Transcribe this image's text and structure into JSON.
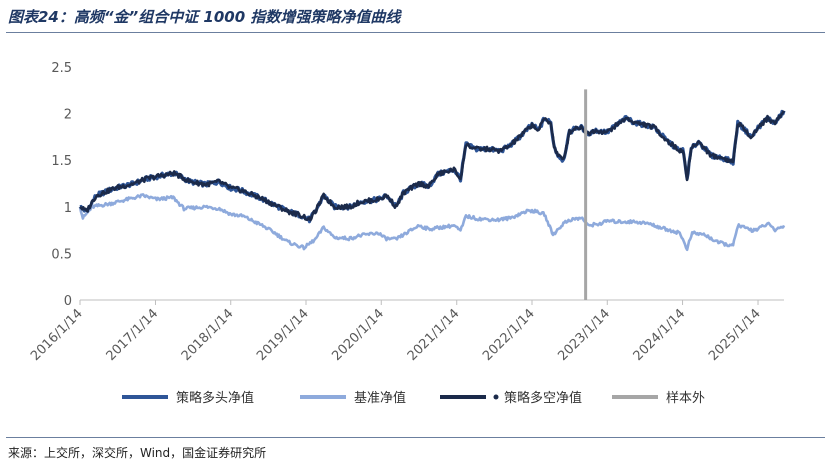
{
  "title": "图表24：高频“金”组合中证 1000 指数增强策略净值曲线",
  "source": "来源：上交所，深交所，Wind，国金证券研究所",
  "chart_data": {
    "type": "line",
    "x_tick_labels": [
      "2016/1/14",
      "2017/1/14",
      "2018/1/14",
      "2019/1/14",
      "2020/1/14",
      "2021/1/14",
      "2022/1/14",
      "2023/1/14",
      "2024/1/14",
      "2025/1/14"
    ],
    "y_tick_labels": [
      "0",
      "0.5",
      "1",
      "1.5",
      "2",
      "2.5"
    ],
    "ylim": [
      0,
      2.5
    ],
    "xlim": [
      "2016-01-14",
      "2025-05-20"
    ],
    "out_of_sample_start": "2022-10-01",
    "legend_position": "bottom",
    "series": [
      {
        "name": "策略多头净值",
        "color": "#2e5597",
        "points": [
          [
            "2016-01-14",
            1.0
          ],
          [
            "2016-02-15",
            0.95
          ],
          [
            "2016-04-01",
            1.12
          ],
          [
            "2016-07-01",
            1.2
          ],
          [
            "2016-10-01",
            1.25
          ],
          [
            "2016-12-01",
            1.3
          ],
          [
            "2017-02-01",
            1.33
          ],
          [
            "2017-04-15",
            1.36
          ],
          [
            "2017-07-01",
            1.27
          ],
          [
            "2017-09-15",
            1.24
          ],
          [
            "2017-11-20",
            1.27
          ],
          [
            "2018-01-15",
            1.2
          ],
          [
            "2018-03-01",
            1.18
          ],
          [
            "2018-06-01",
            1.1
          ],
          [
            "2018-08-15",
            1.02
          ],
          [
            "2018-10-20",
            0.95
          ],
          [
            "2018-12-31",
            0.9
          ],
          [
            "2019-01-31",
            0.86
          ],
          [
            "2019-02-28",
            0.95
          ],
          [
            "2019-04-10",
            1.12
          ],
          [
            "2019-06-01",
            1.0
          ],
          [
            "2019-08-15",
            1.0
          ],
          [
            "2019-10-01",
            1.05
          ],
          [
            "2019-12-31",
            1.08
          ],
          [
            "2020-02-10",
            1.12
          ],
          [
            "2020-03-25",
            1.0
          ],
          [
            "2020-05-01",
            1.15
          ],
          [
            "2020-07-15",
            1.25
          ],
          [
            "2020-09-01",
            1.22
          ],
          [
            "2020-10-15",
            1.35
          ],
          [
            "2020-12-31",
            1.4
          ],
          [
            "2021-02-01",
            1.3
          ],
          [
            "2021-02-28",
            1.67
          ],
          [
            "2021-04-15",
            1.62
          ],
          [
            "2021-06-15",
            1.62
          ],
          [
            "2021-08-15",
            1.6
          ],
          [
            "2021-10-01",
            1.66
          ],
          [
            "2021-11-15",
            1.75
          ],
          [
            "2022-01-14",
            1.88
          ],
          [
            "2022-02-15",
            1.82
          ],
          [
            "2022-03-15",
            1.95
          ],
          [
            "2022-04-15",
            1.9
          ],
          [
            "2022-05-01",
            1.65
          ],
          [
            "2022-05-20",
            1.55
          ],
          [
            "2022-06-15",
            1.5
          ],
          [
            "2022-07-15",
            1.8
          ],
          [
            "2022-08-15",
            1.85
          ],
          [
            "2022-09-15",
            1.85
          ],
          [
            "2022-10-10",
            1.78
          ],
          [
            "2022-11-15",
            1.82
          ],
          [
            "2023-01-14",
            1.8
          ],
          [
            "2023-03-01",
            1.88
          ],
          [
            "2023-04-15",
            1.95
          ],
          [
            "2023-06-01",
            1.9
          ],
          [
            "2023-07-15",
            1.88
          ],
          [
            "2023-09-01",
            1.85
          ],
          [
            "2023-10-25",
            1.72
          ],
          [
            "2023-12-31",
            1.6
          ],
          [
            "2024-01-15",
            1.62
          ],
          [
            "2024-02-05",
            1.3
          ],
          [
            "2024-02-25",
            1.62
          ],
          [
            "2024-04-01",
            1.7
          ],
          [
            "2024-06-01",
            1.55
          ],
          [
            "2024-08-01",
            1.52
          ],
          [
            "2024-09-15",
            1.48
          ],
          [
            "2024-10-08",
            1.9
          ],
          [
            "2024-12-15",
            1.75
          ],
          [
            "2025-01-14",
            1.85
          ],
          [
            "2025-03-01",
            1.95
          ],
          [
            "2025-04-07",
            1.9
          ],
          [
            "2025-05-20",
            2.03
          ]
        ]
      },
      {
        "name": "基准净值",
        "color": "#8eaadc",
        "points": [
          [
            "2016-01-14",
            1.0
          ],
          [
            "2016-01-28",
            0.88
          ],
          [
            "2016-03-15",
            1.0
          ],
          [
            "2016-06-01",
            1.03
          ],
          [
            "2016-09-01",
            1.08
          ],
          [
            "2016-11-15",
            1.12
          ],
          [
            "2017-01-20",
            1.08
          ],
          [
            "2017-04-10",
            1.1
          ],
          [
            "2017-06-01",
            0.98
          ],
          [
            "2017-09-15",
            1.0
          ],
          [
            "2017-11-20",
            0.98
          ],
          [
            "2018-01-15",
            0.92
          ],
          [
            "2018-03-15",
            0.9
          ],
          [
            "2018-06-15",
            0.8
          ],
          [
            "2018-08-15",
            0.72
          ],
          [
            "2018-10-20",
            0.62
          ],
          [
            "2019-01-04",
            0.56
          ],
          [
            "2019-02-28",
            0.65
          ],
          [
            "2019-04-10",
            0.78
          ],
          [
            "2019-06-01",
            0.67
          ],
          [
            "2019-08-15",
            0.66
          ],
          [
            "2019-10-01",
            0.69
          ],
          [
            "2019-12-31",
            0.72
          ],
          [
            "2020-02-03",
            0.66
          ],
          [
            "2020-03-25",
            0.65
          ],
          [
            "2020-05-01",
            0.7
          ],
          [
            "2020-07-15",
            0.8
          ],
          [
            "2020-09-01",
            0.76
          ],
          [
            "2020-12-31",
            0.8
          ],
          [
            "2021-02-01",
            0.74
          ],
          [
            "2021-02-28",
            0.9
          ],
          [
            "2021-05-01",
            0.87
          ],
          [
            "2021-08-01",
            0.86
          ],
          [
            "2021-10-01",
            0.88
          ],
          [
            "2021-12-15",
            0.95
          ],
          [
            "2022-01-14",
            0.96
          ],
          [
            "2022-03-15",
            0.92
          ],
          [
            "2022-04-26",
            0.7
          ],
          [
            "2022-06-15",
            0.82
          ],
          [
            "2022-07-15",
            0.86
          ],
          [
            "2022-09-15",
            0.88
          ],
          [
            "2022-10-10",
            0.8
          ],
          [
            "2022-12-15",
            0.82
          ],
          [
            "2023-01-14",
            0.85
          ],
          [
            "2023-03-01",
            0.84
          ],
          [
            "2023-06-01",
            0.84
          ],
          [
            "2023-08-01",
            0.82
          ],
          [
            "2023-10-25",
            0.76
          ],
          [
            "2023-12-31",
            0.72
          ],
          [
            "2024-02-05",
            0.55
          ],
          [
            "2024-03-01",
            0.72
          ],
          [
            "2024-05-01",
            0.7
          ],
          [
            "2024-07-01",
            0.62
          ],
          [
            "2024-09-15",
            0.58
          ],
          [
            "2024-10-08",
            0.8
          ],
          [
            "2024-12-15",
            0.75
          ],
          [
            "2025-01-14",
            0.76
          ],
          [
            "2025-03-01",
            0.82
          ],
          [
            "2025-04-07",
            0.75
          ],
          [
            "2025-05-20",
            0.8
          ]
        ]
      },
      {
        "name": "策略多空净值",
        "color": "#1b2a4a",
        "points": [
          [
            "2016-01-14",
            1.0
          ],
          [
            "2016-02-15",
            0.95
          ],
          [
            "2016-04-01",
            1.12
          ],
          [
            "2016-07-01",
            1.2
          ],
          [
            "2016-10-01",
            1.25
          ],
          [
            "2016-12-01",
            1.3
          ],
          [
            "2017-02-01",
            1.33
          ],
          [
            "2017-04-15",
            1.36
          ],
          [
            "2017-07-01",
            1.27
          ],
          [
            "2017-09-15",
            1.24
          ],
          [
            "2017-11-20",
            1.27
          ],
          [
            "2018-01-15",
            1.2
          ],
          [
            "2018-03-01",
            1.18
          ],
          [
            "2018-06-01",
            1.1
          ],
          [
            "2018-08-15",
            1.02
          ],
          [
            "2018-10-20",
            0.95
          ],
          [
            "2018-12-31",
            0.9
          ],
          [
            "2019-01-31",
            0.86
          ],
          [
            "2019-02-28",
            0.95
          ],
          [
            "2019-04-10",
            1.12
          ],
          [
            "2019-06-01",
            1.0
          ],
          [
            "2019-08-15",
            1.0
          ],
          [
            "2019-10-01",
            1.05
          ],
          [
            "2019-12-31",
            1.08
          ],
          [
            "2020-02-10",
            1.12
          ],
          [
            "2020-03-25",
            1.0
          ],
          [
            "2020-05-01",
            1.15
          ],
          [
            "2020-07-15",
            1.25
          ],
          [
            "2020-09-01",
            1.22
          ],
          [
            "2020-10-15",
            1.35
          ],
          [
            "2020-12-31",
            1.4
          ],
          [
            "2021-02-01",
            1.3
          ],
          [
            "2021-02-28",
            1.67
          ],
          [
            "2021-04-15",
            1.62
          ],
          [
            "2021-06-15",
            1.62
          ],
          [
            "2021-08-15",
            1.6
          ],
          [
            "2021-10-01",
            1.66
          ],
          [
            "2021-11-15",
            1.75
          ],
          [
            "2022-01-14",
            1.88
          ],
          [
            "2022-02-15",
            1.82
          ],
          [
            "2022-03-15",
            1.95
          ],
          [
            "2022-04-15",
            1.9
          ],
          [
            "2022-05-01",
            1.65
          ],
          [
            "2022-05-20",
            1.55
          ],
          [
            "2022-06-15",
            1.5
          ],
          [
            "2022-07-15",
            1.8
          ],
          [
            "2022-08-15",
            1.85
          ],
          [
            "2022-09-15",
            1.85
          ],
          [
            "2022-10-10",
            1.78
          ],
          [
            "2022-11-15",
            1.82
          ],
          [
            "2023-01-14",
            1.8
          ],
          [
            "2023-03-01",
            1.88
          ],
          [
            "2023-04-15",
            1.95
          ],
          [
            "2023-06-01",
            1.9
          ],
          [
            "2023-07-15",
            1.88
          ],
          [
            "2023-09-01",
            1.85
          ],
          [
            "2023-10-25",
            1.72
          ],
          [
            "2023-12-31",
            1.6
          ],
          [
            "2024-01-15",
            1.62
          ],
          [
            "2024-02-05",
            1.3
          ],
          [
            "2024-02-25",
            1.62
          ],
          [
            "2024-04-01",
            1.7
          ],
          [
            "2024-06-01",
            1.55
          ],
          [
            "2024-08-01",
            1.52
          ],
          [
            "2024-09-15",
            1.48
          ],
          [
            "2024-10-08",
            1.9
          ],
          [
            "2024-12-15",
            1.75
          ],
          [
            "2025-01-14",
            1.85
          ],
          [
            "2025-03-01",
            1.95
          ],
          [
            "2025-04-07",
            1.9
          ],
          [
            "2025-05-20",
            2.03
          ]
        ]
      }
    ],
    "marker_series": {
      "name": "样本外",
      "color": "#a6a6a6"
    }
  }
}
